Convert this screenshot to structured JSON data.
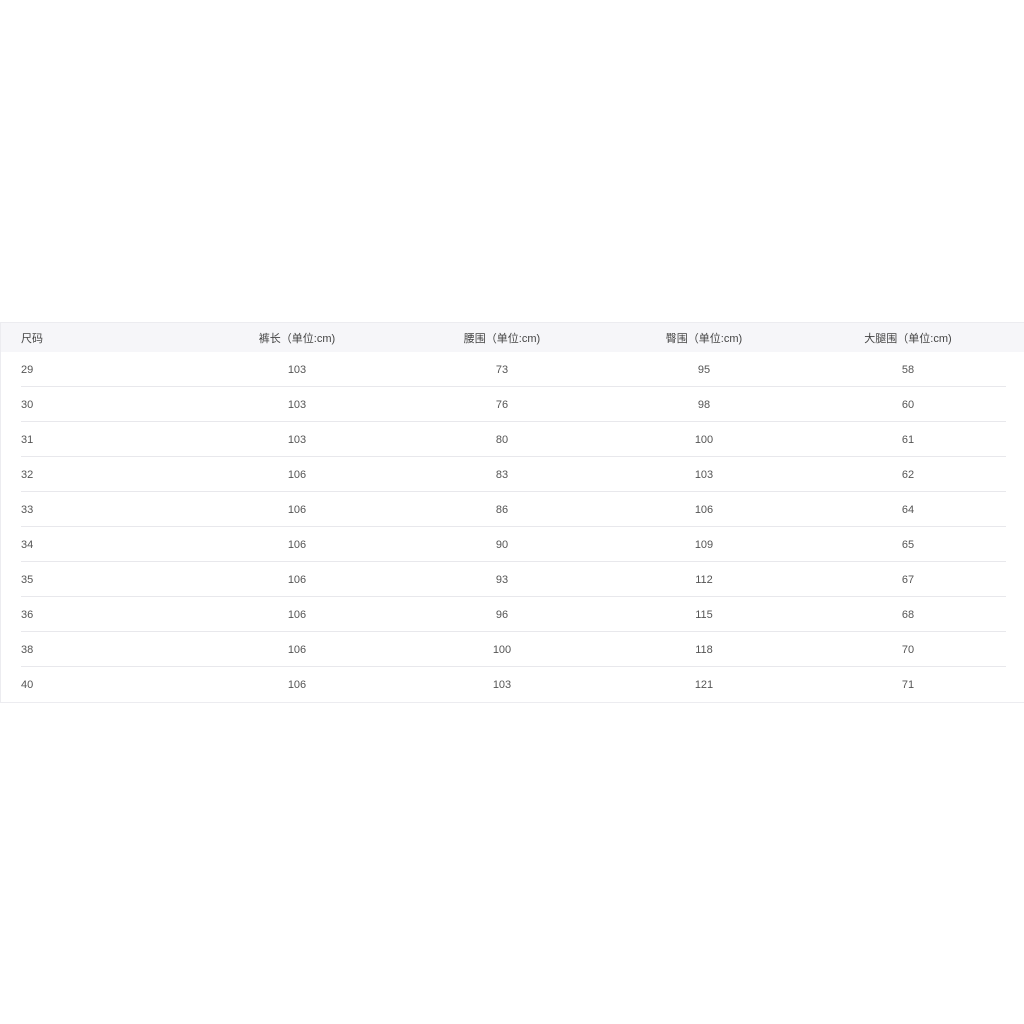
{
  "table": {
    "headers": [
      "尺码",
      "裤长（单位:cm)",
      "腰围（单位:cm)",
      "臀围（单位:cm)",
      "大腿围（单位:cm)"
    ],
    "rows": [
      [
        "29",
        "103",
        "73",
        "95",
        "58"
      ],
      [
        "30",
        "103",
        "76",
        "98",
        "60"
      ],
      [
        "31",
        "103",
        "80",
        "100",
        "61"
      ],
      [
        "32",
        "106",
        "83",
        "103",
        "62"
      ],
      [
        "33",
        "106",
        "86",
        "106",
        "64"
      ],
      [
        "34",
        "106",
        "90",
        "109",
        "65"
      ],
      [
        "35",
        "106",
        "93",
        "112",
        "67"
      ],
      [
        "36",
        "106",
        "96",
        "115",
        "68"
      ],
      [
        "38",
        "106",
        "100",
        "118",
        "70"
      ],
      [
        "40",
        "106",
        "103",
        "121",
        "71"
      ]
    ]
  }
}
